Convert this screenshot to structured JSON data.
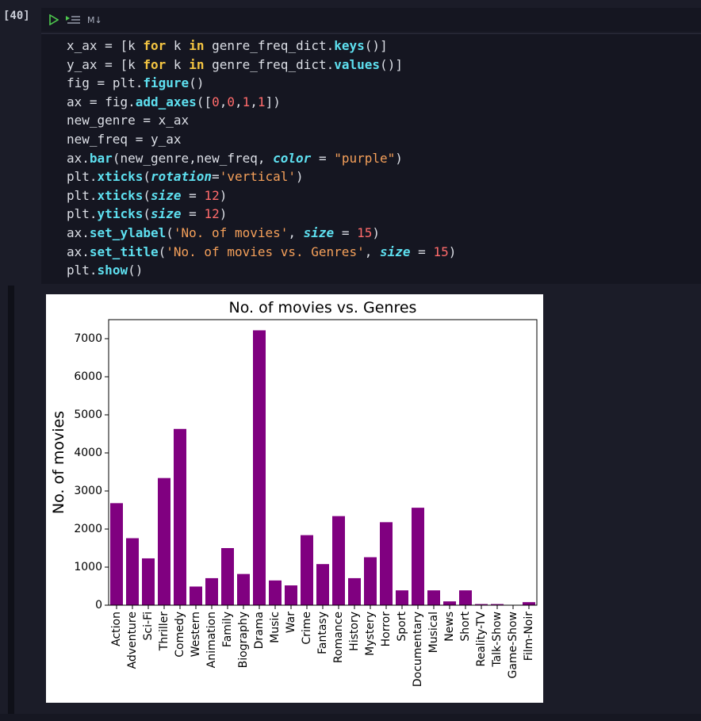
{
  "cell": {
    "execution_count": "[40]",
    "toolbar": {
      "run_icon": "play-icon",
      "run_above_icon": "run-by-line-icon",
      "markdown_label": "M↓"
    },
    "code_lines": [
      "x_ax = [k for k in genre_freq_dict.keys()]",
      "y_ax = [k for k in genre_freq_dict.values()]",
      "fig = plt.figure()",
      "ax = fig.add_axes([0,0,1,1])",
      "new_genre = x_ax",
      "new_freq = y_ax",
      "ax.bar(new_genre,new_freq, color = \"purple\")",
      "plt.xticks(rotation='vertical')",
      "plt.xticks(size = 12)",
      "plt.yticks(size = 12)",
      "ax.set_ylabel('No. of movies', size = 15)",
      "ax.set_title('No. of movies vs. Genres', size = 15)",
      "plt.show()"
    ]
  },
  "colors": {
    "background": "#1b1c28",
    "cell_bg": "#151621",
    "bar": "#800080",
    "keyword": "#f4c542",
    "function": "#5ee0f0",
    "number": "#ff6b6b",
    "string": "#f5a05a"
  },
  "chart_data": {
    "type": "bar",
    "title": "No. of movies vs. Genres",
    "xlabel": "",
    "ylabel": "No. of movies",
    "ylim": [
      0,
      7500
    ],
    "yticks": [
      0,
      1000,
      2000,
      3000,
      4000,
      5000,
      6000,
      7000
    ],
    "grid": false,
    "categories": [
      "Action",
      "Adventure",
      "Sci-Fi",
      "Thriller",
      "Comedy",
      "Western",
      "Animation",
      "Family",
      "Biography",
      "Drama",
      "Music",
      "War",
      "Crime",
      "Fantasy",
      "Romance",
      "History",
      "Mystery",
      "Horror",
      "Sport",
      "Documentary",
      "Musical",
      "News",
      "Short",
      "Reality-TV",
      "Talk-Show",
      "Game-Show",
      "Film-Noir"
    ],
    "values": [
      2680,
      1760,
      1230,
      3340,
      4630,
      490,
      710,
      1500,
      820,
      7220,
      650,
      520,
      1840,
      1080,
      2340,
      710,
      1260,
      2180,
      390,
      2560,
      390,
      100,
      390,
      30,
      30,
      10,
      80
    ],
    "bar_color": "#800080"
  }
}
